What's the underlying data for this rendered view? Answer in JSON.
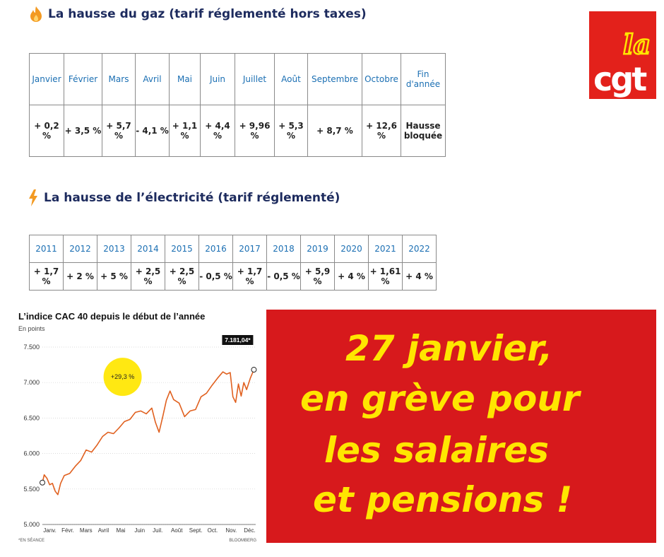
{
  "gas": {
    "title": "La hausse du gaz (tarif réglementé hors taxes)",
    "icon": "flame-icon",
    "headers": [
      "Janvier",
      "Février",
      "Mars",
      "Avril",
      "Mai",
      "Juin",
      "Juillet",
      "Août",
      "Septembre",
      "Octobre",
      "Fin d'année"
    ],
    "values": [
      "+ 0,2 %",
      "+ 3,5 %",
      "+ 5,7 %",
      "- 4,1 %",
      "+ 1,1 %",
      "+ 4,4 %",
      "+ 9,96 %",
      "+ 5,3 %",
      "+ 8,7 %",
      "+ 12,6 %",
      "Hausse bloquée"
    ]
  },
  "electricity": {
    "title": "La hausse de l’électricité (tarif réglementé)",
    "icon": "lightning-icon",
    "headers": [
      "2011",
      "2012",
      "2013",
      "2014",
      "2015",
      "2016",
      "2017",
      "2018",
      "2019",
      "2020",
      "2021",
      "2022"
    ],
    "values": [
      "+ 1,7 %",
      "+ 2 %",
      "+ 5 %",
      "+ 2,5 %",
      "+ 2,5 %",
      "- 0,5 %",
      "+ 1,7 %",
      "- 0,5 %",
      "+ 5,9 %",
      "+ 4 %",
      "+ 1,61 %",
      "+ 4 %"
    ]
  },
  "logo": {
    "top": "la",
    "bottom": "cgt",
    "color": "#e3211b"
  },
  "banner": {
    "lines": [
      "27 janvier,",
      "en grève pour",
      "les salaires",
      "et pensions !"
    ],
    "background": "#d7191c",
    "text_color": "#ffe600"
  },
  "chart_data": {
    "type": "line",
    "title": "L’indice CAC 40 depuis le début de l’année",
    "ylabel": "En points",
    "source_left": "*EN SÉANCE",
    "source_right": "BLOOMBERG",
    "badge": "+29,3 %",
    "last_label": "7.181,04*",
    "ylim": [
      5000,
      7500
    ],
    "yticks": [
      "7.500",
      "7.000",
      "6.500",
      "6.000",
      "5.500",
      "5.000"
    ],
    "ytick_values": [
      7500,
      7000,
      6500,
      6000,
      5500,
      5000
    ],
    "categories": [
      "Janv.",
      "Févr.",
      "Mars",
      "Avril",
      "Mai",
      "Juin",
      "Juil.",
      "Août",
      "Sept.",
      "Oct.",
      "Nov.",
      "Déc."
    ],
    "series": [
      {
        "color": "#e0601f",
        "x": [
          0,
          0.1,
          0.25,
          0.4,
          0.55,
          0.7,
          0.85,
          1.0,
          1.2,
          1.5,
          1.8,
          2.1,
          2.4,
          2.7,
          3.0,
          3.3,
          3.6,
          3.9,
          4.2,
          4.5,
          4.8,
          5.1,
          5.4,
          5.7,
          6.0,
          6.2,
          6.4,
          6.6,
          6.8,
          7.0,
          7.2,
          7.5,
          7.8,
          8.1,
          8.4,
          8.7,
          9.0,
          9.3,
          9.6,
          9.9,
          10.1,
          10.3,
          10.45,
          10.6,
          10.75,
          10.9,
          11.05,
          11.2,
          11.4,
          11.6
        ],
        "values": [
          5590,
          5700,
          5650,
          5560,
          5580,
          5470,
          5420,
          5580,
          5690,
          5720,
          5820,
          5900,
          6050,
          6020,
          6120,
          6240,
          6300,
          6280,
          6360,
          6450,
          6480,
          6580,
          6600,
          6560,
          6640,
          6440,
          6300,
          6520,
          6750,
          6880,
          6760,
          6710,
          6520,
          6600,
          6620,
          6800,
          6850,
          6960,
          7060,
          7150,
          7120,
          7140,
          6800,
          6720,
          6980,
          6810,
          7000,
          6900,
          7060,
          7181
        ]
      }
    ]
  }
}
